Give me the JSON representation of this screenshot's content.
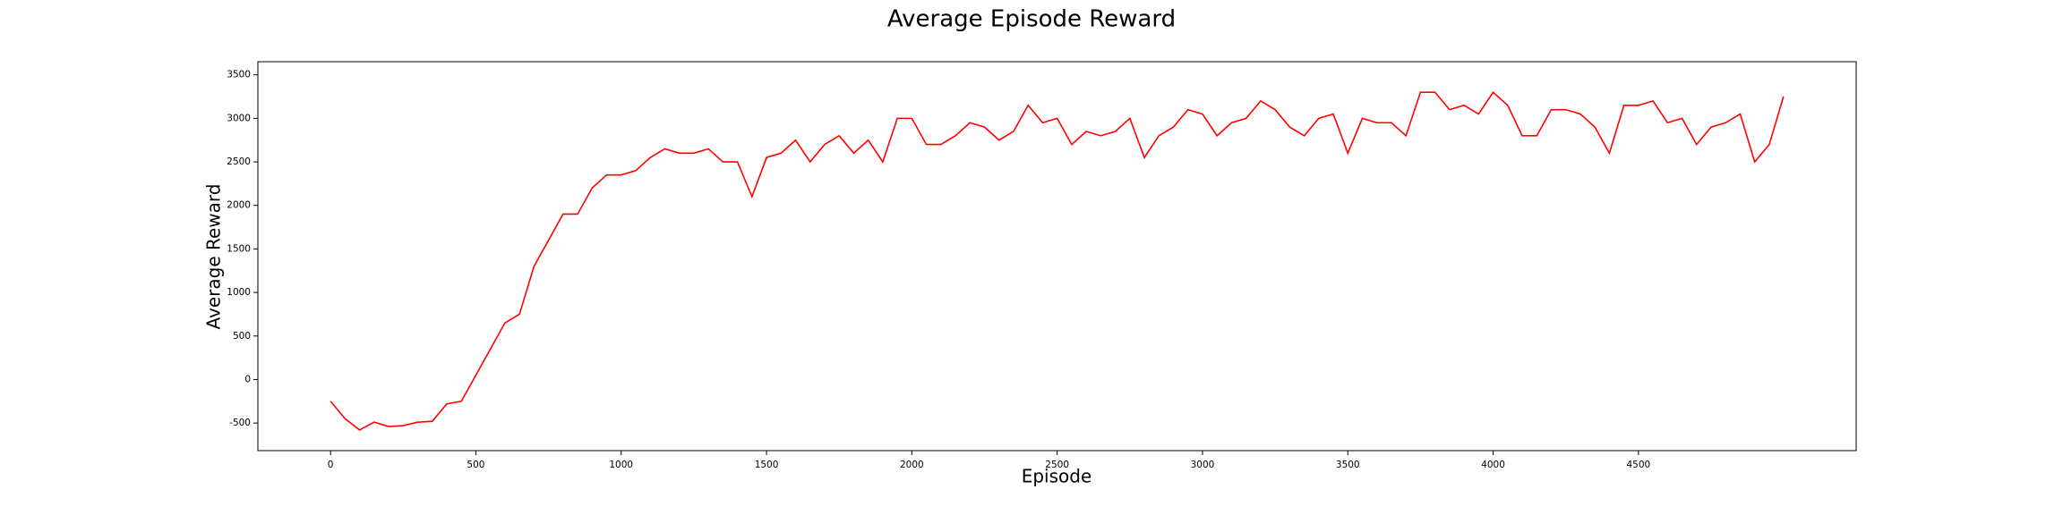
{
  "chart_data": {
    "type": "line",
    "title": "Average Episode Reward",
    "x_label": "Episode",
    "y_label": "Average Reward",
    "x": [
      0,
      50,
      100,
      150,
      200,
      250,
      300,
      350,
      400,
      450,
      500,
      550,
      600,
      650,
      700,
      750,
      800,
      850,
      900,
      950,
      1000,
      1050,
      1100,
      1150,
      1200,
      1250,
      1300,
      1350,
      1400,
      1450,
      1500,
      1550,
      1600,
      1650,
      1700,
      1750,
      1800,
      1850,
      1900,
      1950,
      2000,
      2050,
      2100,
      2150,
      2200,
      2250,
      2300,
      2350,
      2400,
      2450,
      2500,
      2550,
      2600,
      2650,
      2700,
      2750,
      2800,
      2850,
      2900,
      2950,
      3000,
      3050,
      3100,
      3150,
      3200,
      3250,
      3300,
      3350,
      3400,
      3450,
      3500,
      3550,
      3600,
      3650,
      3700,
      3750,
      3800,
      3850,
      3900,
      3950,
      4000,
      4050,
      4100,
      4150,
      4200,
      4250,
      4300,
      4350,
      4400,
      4450,
      4500,
      4550,
      4600,
      4650,
      4700,
      4750,
      4800,
      4850,
      4900,
      4950,
      4999
    ],
    "series": [
      {
        "name": "Average Reward",
        "color": "#ff0000",
        "values": [
          -250,
          -450,
          -580,
          -490,
          -540,
          -530,
          -490,
          -480,
          -280,
          -250,
          50,
          350,
          650,
          750,
          1300,
          1600,
          1900,
          1900,
          2200,
          2350,
          2350,
          2400,
          2550,
          2650,
          2600,
          2600,
          2650,
          2500,
          2500,
          2100,
          2550,
          2600,
          2750,
          2500,
          2700,
          2800,
          2600,
          2750,
          2500,
          3000,
          3000,
          2700,
          2700,
          2800,
          2950,
          2900,
          2750,
          2850,
          3150,
          2950,
          3000,
          2700,
          2850,
          2800,
          2850,
          3000,
          2550,
          2800,
          2900,
          3100,
          3050,
          2800,
          2950,
          3000,
          3200,
          3100,
          2900,
          2800,
          3000,
          3050,
          2600,
          3000,
          2950,
          2950,
          2800,
          3300,
          3300,
          3100,
          3150,
          3050,
          3300,
          3150,
          2800,
          2800,
          3100,
          3100,
          3050,
          2900,
          2600,
          3150,
          3150,
          3200,
          2950,
          3000,
          2700,
          2900,
          2950,
          3050,
          2500,
          2700,
          3250
        ]
      }
    ],
    "xlim": [
      -250,
      5249
    ],
    "ylim": [
      -817,
      3651
    ],
    "xticks": [
      0,
      500,
      1000,
      1500,
      2000,
      2500,
      3000,
      3500,
      4000,
      4500
    ],
    "yticks": [
      -500,
      0,
      500,
      1000,
      1500,
      2000,
      2500,
      3000,
      3500
    ]
  }
}
